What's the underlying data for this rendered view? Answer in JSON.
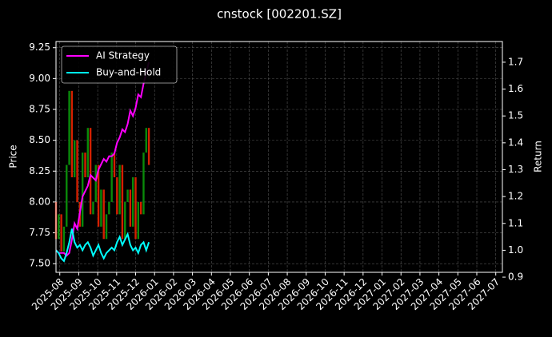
{
  "chart_data": {
    "type": "candlestick-returns",
    "title": "cnstock [002201.SZ]",
    "ylabel": "Price",
    "y2label": "Return",
    "xlim": [
      -0.2,
      23.35
    ],
    "xticks": [
      {
        "value": 0,
        "label": "2025-08"
      },
      {
        "value": 1,
        "label": "2025-09"
      },
      {
        "value": 2,
        "label": "2025-10"
      },
      {
        "value": 3,
        "label": "2025-11"
      },
      {
        "value": 4,
        "label": "2025-12"
      },
      {
        "value": 5,
        "label": "2026-01"
      },
      {
        "value": 6,
        "label": "2026-02"
      },
      {
        "value": 7,
        "label": "2026-03"
      },
      {
        "value": 8,
        "label": "2026-04"
      },
      {
        "value": 9,
        "label": "2026-05"
      },
      {
        "value": 10,
        "label": "2026-06"
      },
      {
        "value": 11,
        "label": "2026-07"
      },
      {
        "value": 12,
        "label": "2026-08"
      },
      {
        "value": 13,
        "label": "2026-09"
      },
      {
        "value": 14,
        "label": "2026-10"
      },
      {
        "value": 15,
        "label": "2026-11"
      },
      {
        "value": 16,
        "label": "2026-12"
      },
      {
        "value": 17,
        "label": "2027-01"
      },
      {
        "value": 18,
        "label": "2027-02"
      },
      {
        "value": 19,
        "label": "2027-03"
      },
      {
        "value": 20,
        "label": "2027-04"
      },
      {
        "value": 21,
        "label": "2027-05"
      },
      {
        "value": 22,
        "label": "2027-06"
      },
      {
        "value": 23,
        "label": "2027-07"
      }
    ],
    "ylim": [
      7.43,
      9.3
    ],
    "yticks": [
      {
        "value": 7.5,
        "label": "7.50"
      },
      7.75,
      {
        "value": 8,
        "label": "8.00"
      },
      8.25,
      {
        "value": 8.5,
        "label": "8.50"
      },
      8.75,
      {
        "value": 9,
        "label": "9.00"
      },
      9.25
    ],
    "y2lim": [
      0.918,
      1.777
    ],
    "y2ticks": [
      0.9,
      {
        "value": 1,
        "label": "1.0"
      },
      1.1,
      1.2,
      1.3,
      1.4,
      1.5,
      1.6,
      1.7
    ],
    "grid": true,
    "legend": "upper left",
    "x": [
      -0.2,
      -0.06,
      0.08,
      0.22,
      0.36,
      0.5,
      0.64,
      0.78,
      0.92,
      1.06,
      1.2,
      1.34,
      1.48,
      1.62,
      1.76,
      1.9,
      2.04,
      2.18,
      2.32,
      2.46,
      2.6,
      2.74,
      2.88,
      3.02,
      3.16,
      3.3,
      3.44,
      3.58,
      3.72,
      3.86,
      4.0,
      4.14,
      4.28,
      4.42,
      4.56,
      4.7
    ],
    "candles": {
      "up_color": "#0a8a0a",
      "down_color": "#d42000",
      "open": [
        8.0,
        7.7,
        7.9,
        7.6,
        7.8,
        8.3,
        8.9,
        8.2,
        8.5,
        8.0,
        7.8,
        8.4,
        8.2,
        8.6,
        7.9,
        8.0,
        8.3,
        7.8,
        8.1,
        7.7,
        7.9,
        8.0,
        8.4,
        8.2,
        7.9,
        8.3,
        7.7,
        8.0,
        8.1,
        7.8,
        8.2,
        7.7,
        8.0,
        7.9,
        8.4,
        8.6
      ],
      "close": [
        7.7,
        7.9,
        7.6,
        7.8,
        8.3,
        8.9,
        8.2,
        8.5,
        8.0,
        7.8,
        8.4,
        8.2,
        8.6,
        7.9,
        8.0,
        8.3,
        7.8,
        8.1,
        7.7,
        7.9,
        8.0,
        8.4,
        8.2,
        7.9,
        8.3,
        7.7,
        8.0,
        8.1,
        7.8,
        8.2,
        7.7,
        8.0,
        7.9,
        8.4,
        8.6,
        8.3
      ]
    },
    "series": [
      {
        "name": "AI Strategy",
        "color": "#ff00ff",
        "axis": "y2",
        "values": [
          1.0,
          0.99,
          0.99,
          0.99,
          0.98,
          0.99,
          1.04,
          1.1,
          1.08,
          1.14,
          1.2,
          1.22,
          1.24,
          1.28,
          1.27,
          1.26,
          1.3,
          1.32,
          1.34,
          1.33,
          1.35,
          1.35,
          1.36,
          1.4,
          1.42,
          1.45,
          1.44,
          1.47,
          1.52,
          1.5,
          1.53,
          1.58,
          1.57,
          1.62,
          1.66,
          1.7
        ]
      },
      {
        "name": "Buy-and-Hold",
        "color": "#00ffff",
        "axis": "y2",
        "values": [
          1.0,
          0.99,
          0.97,
          0.96,
          0.99,
          1.03,
          1.08,
          1.03,
          1.01,
          1.02,
          1.0,
          1.02,
          1.03,
          1.01,
          0.98,
          1.0,
          1.02,
          0.99,
          0.97,
          0.99,
          1.0,
          1.01,
          1.0,
          1.03,
          1.05,
          1.02,
          1.04,
          1.06,
          1.02,
          1.0,
          1.01,
          0.99,
          1.02,
          1.03,
          1.0,
          1.03
        ]
      }
    ]
  }
}
